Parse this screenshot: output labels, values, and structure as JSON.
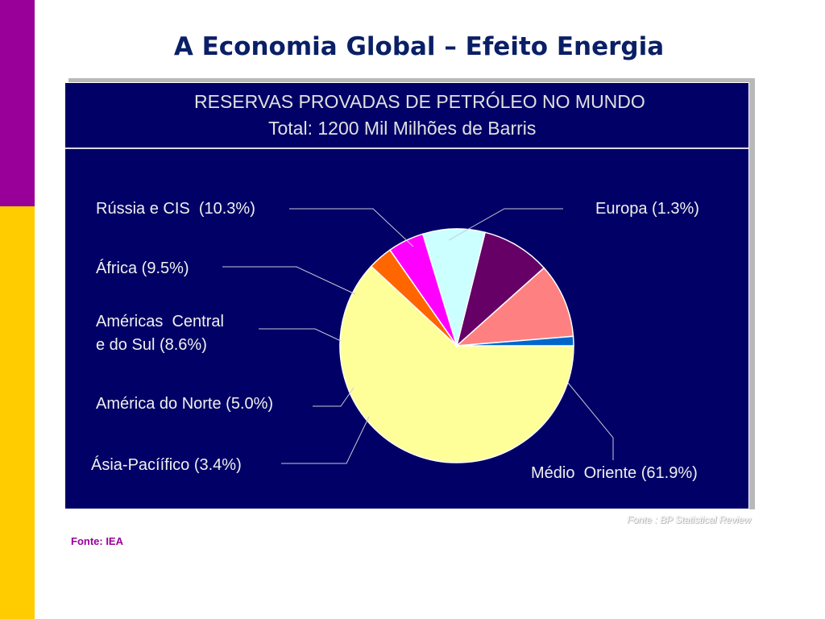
{
  "slide": {
    "title": "A Economia Global – Efeito Energia",
    "source_note": "Fonte: IEA",
    "chart_source": "Fonte : BP Statistical Review"
  },
  "colors": {
    "accent_purple": "#990099",
    "accent_yellow": "#ffcc00",
    "chart_bg": "#000066"
  },
  "chart_data": {
    "type": "pie",
    "title": "RESERVAS PROVADAS DE PETRÓLEO NO MUNDO",
    "subtitle": "Total: 1200 Mil Milhões de Barris",
    "slices": [
      {
        "label": "Médio  Oriente (61.9%)",
        "value": 61.9,
        "color": "#ffff99"
      },
      {
        "label": "Ásia-Pacíífico (3.4%)",
        "value": 3.4,
        "color": "#ff6600"
      },
      {
        "label": "América do Norte (5.0%)",
        "value": 5.0,
        "color": "#ff00ff"
      },
      {
        "label": "Américas  Central\ne do Sul (8.6%)",
        "value": 8.6,
        "color": "#ccffff"
      },
      {
        "label": "África (9.5%)",
        "value": 9.5,
        "color": "#660066"
      },
      {
        "label": "Rússia e CIS  (10.3%)",
        "value": 10.3,
        "color": "#ff8080"
      },
      {
        "label": "Europa (1.3%)",
        "value": 1.3,
        "color": "#0066cc"
      }
    ]
  }
}
